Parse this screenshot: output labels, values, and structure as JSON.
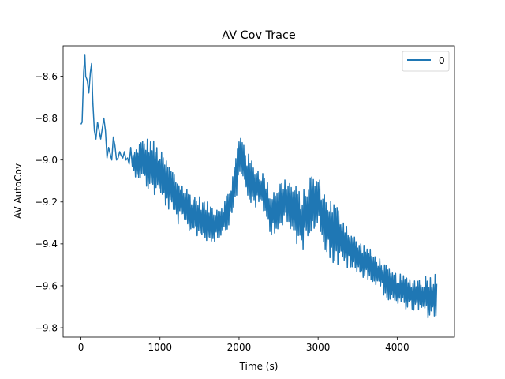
{
  "chart_data": {
    "type": "line",
    "title": "AV Cov Trace",
    "xlabel": "Time (s)",
    "ylabel": "AV AutoCov",
    "xlim": [
      -225,
      4725
    ],
    "ylim": [
      -9.845,
      -8.455
    ],
    "xticks": [
      0,
      1000,
      2000,
      3000,
      4000
    ],
    "xtick_labels": [
      "0",
      "1000",
      "2000",
      "3000",
      "4000"
    ],
    "yticks": [
      -9.8,
      -9.6,
      -9.4,
      -9.2,
      -9.0,
      -8.8,
      -8.6
    ],
    "ytick_labels": [
      "−9.8",
      "−9.6",
      "−9.4",
      "−9.2",
      "−9.0",
      "−8.8",
      "−8.6"
    ],
    "grid": false,
    "legend_position": "top-right",
    "series": [
      {
        "name": "0",
        "color": "#1f77b4",
        "x": [
          0,
          15,
          25,
          35,
          50,
          60,
          80,
          100,
          120,
          135,
          150,
          170,
          190,
          210,
          230,
          250,
          270,
          290,
          310,
          330,
          350,
          370,
          390,
          410,
          430,
          450,
          470,
          490,
          510,
          530,
          550,
          570,
          590,
          610,
          630,
          650
        ],
        "y": [
          -8.83,
          -8.82,
          -8.7,
          -8.58,
          -8.5,
          -8.6,
          -8.62,
          -8.68,
          -8.58,
          -8.54,
          -8.72,
          -8.86,
          -8.9,
          -8.82,
          -8.86,
          -8.9,
          -8.85,
          -8.8,
          -8.86,
          -8.99,
          -8.94,
          -8.97,
          -9.0,
          -8.89,
          -8.93,
          -9.0,
          -8.99,
          -8.96,
          -8.98,
          -8.99,
          -8.96,
          -9.0,
          -8.99,
          -9.02,
          -8.94,
          -9.03
        ]
      }
    ],
    "noise": {
      "comment": "",
      "start": 650,
      "end": 4500,
      "step": 10,
      "trend_x": [
        650,
        750,
        900,
        1000,
        1100,
        1200,
        1300,
        1400,
        1500,
        1600,
        1700,
        1800,
        1900,
        1950,
        2000,
        2050,
        2100,
        2200,
        2300,
        2400,
        2500,
        2600,
        2700,
        2800,
        2900,
        3000,
        3100,
        3200,
        3300,
        3400,
        3500,
        3600,
        3700,
        3800,
        3900,
        4000,
        4100,
        4200,
        4300,
        4400,
        4500
      ],
      "trend_y": [
        -9.02,
        -9.0,
        -9.03,
        -9.07,
        -9.12,
        -9.18,
        -9.22,
        -9.25,
        -9.27,
        -9.3,
        -9.3,
        -9.28,
        -9.2,
        -9.1,
        -9.0,
        -8.98,
        -9.08,
        -9.12,
        -9.15,
        -9.25,
        -9.22,
        -9.2,
        -9.25,
        -9.3,
        -9.2,
        -9.2,
        -9.3,
        -9.35,
        -9.38,
        -9.42,
        -9.47,
        -9.48,
        -9.52,
        -9.55,
        -9.6,
        -9.62,
        -9.63,
        -9.64,
        -9.65,
        -9.65,
        -9.65
      ],
      "amp_x": [
        650,
        800,
        900,
        1000,
        1200,
        1400,
        1600,
        1800,
        1900,
        2000,
        2100,
        2300,
        2500,
        2700,
        2900,
        3000,
        3100,
        3200,
        3300,
        3400,
        3600,
        3800,
        4000,
        4200,
        4300,
        4500
      ],
      "amp_y": [
        0.05,
        0.12,
        0.14,
        0.12,
        0.12,
        0.1,
        0.1,
        0.08,
        0.1,
        0.12,
        0.12,
        0.1,
        0.12,
        0.14,
        0.14,
        0.13,
        0.14,
        0.16,
        0.14,
        0.1,
        0.08,
        0.08,
        0.08,
        0.08,
        0.1,
        0.12
      ]
    }
  }
}
